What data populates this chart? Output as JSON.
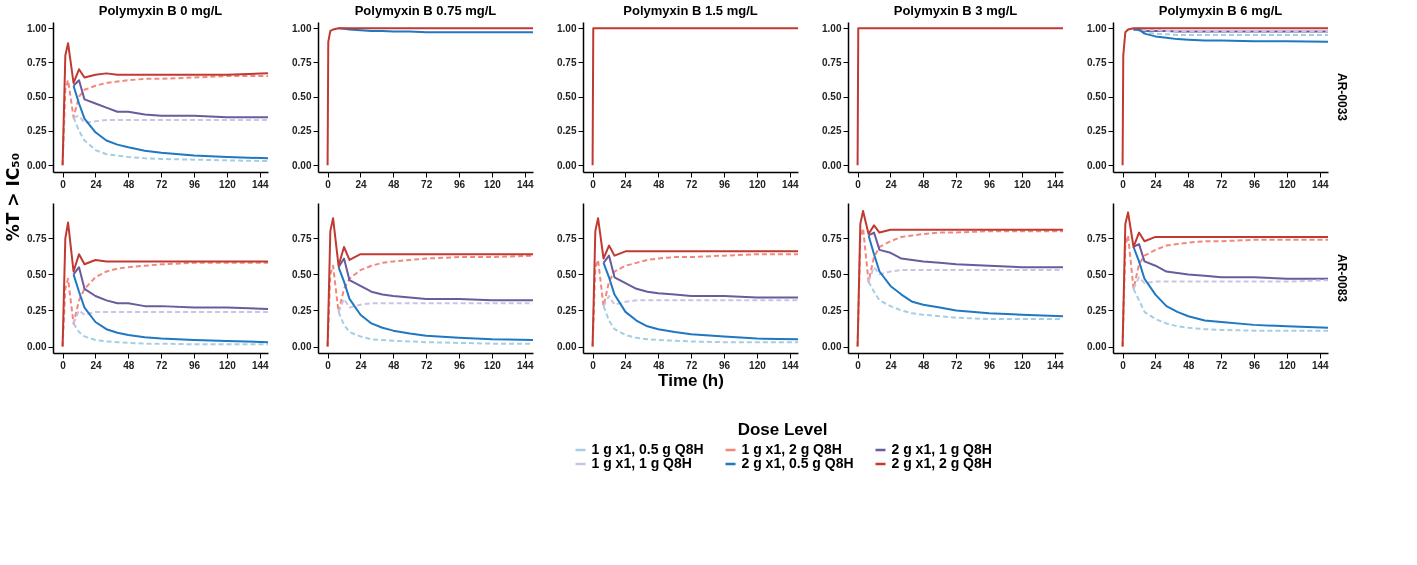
{
  "chart_data": [
    {
      "type": "line",
      "title": "Polymyxin B 0 mg/L",
      "ylabel": "%T > IC₅₀",
      "legend": "bottom",
      "legend_title": "Dose Level",
      "x": [
        0,
        2,
        4,
        8,
        12,
        16,
        24,
        32,
        40,
        48,
        60,
        72,
        96,
        120,
        150
      ],
      "xlim": [
        -7,
        150
      ],
      "xticks": [
        0,
        24,
        48,
        72,
        96,
        120,
        144
      ],
      "ylim": [
        -0.05,
        1.045
      ],
      "yticks": [
        {
          "value": 0,
          "label": "0.00"
        },
        {
          "value": 0.25,
          "label": "0.25"
        },
        {
          "value": 0.5,
          "label": "0.50"
        },
        {
          "value": 0.75,
          "label": "0.75"
        },
        {
          "value": 1,
          "label": "1.00"
        }
      ],
      "series": [
        {
          "name": "1 g x1, 0.5 g Q8H",
          "color": "#a6cee3",
          "line_style": "dashed",
          "values": [
            null,
            null,
            null,
            0.35,
            0.25,
            0.18,
            0.11,
            0.08,
            0.07,
            0.06,
            0.05,
            0.045,
            0.04,
            0.035,
            0.03
          ]
        },
        {
          "name": "1 g x1, 2 g Q8H",
          "color": "#f4877c",
          "line_style": "dashed",
          "values": [
            0,
            0.55,
            0.62,
            0.35,
            0.5,
            0.55,
            0.58,
            0.6,
            0.61,
            0.62,
            0.63,
            0.63,
            0.64,
            0.65,
            0.65
          ]
        },
        {
          "name": "2 g x1, 1 g Q8H",
          "color": "#6a5a9e",
          "line_style": "solid",
          "values": [
            null,
            null,
            null,
            0.58,
            0.62,
            0.48,
            0.45,
            0.42,
            0.39,
            0.39,
            0.37,
            0.36,
            0.36,
            0.35,
            0.35
          ]
        },
        {
          "name": "1 g x1, 1 g Q8H",
          "color": "#cbc3e3",
          "line_style": "dashed",
          "values": [
            null,
            null,
            null,
            0.35,
            0.36,
            0.31,
            0.32,
            0.33,
            0.33,
            0.33,
            0.33,
            0.33,
            0.33,
            0.33,
            0.33
          ]
        },
        {
          "name": "2 g x1, 0.5 g Q8H",
          "color": "#1f78c1",
          "line_style": "solid",
          "values": [
            null,
            null,
            null,
            0.58,
            0.45,
            0.34,
            0.24,
            0.18,
            0.15,
            0.13,
            0.105,
            0.09,
            0.07,
            0.06,
            0.05
          ]
        },
        {
          "name": "2 g x1, 2 g Q8H",
          "color": "#c13a32",
          "line_style": "solid",
          "values": [
            0,
            0.8,
            0.89,
            0.6,
            0.7,
            0.64,
            0.66,
            0.67,
            0.66,
            0.66,
            0.66,
            0.66,
            0.66,
            0.66,
            0.67
          ]
        }
      ]
    },
    {
      "type": "line",
      "title": "Polymyxin B 0.75 mg/L",
      "x": [
        0,
        0.5,
        2,
        4,
        8,
        12,
        16,
        24,
        32,
        40,
        48,
        60,
        72,
        96,
        120,
        150
      ],
      "xlim": [
        -7,
        150
      ],
      "xticks": [
        0,
        24,
        48,
        72,
        96,
        120,
        144
      ],
      "ylim": [
        -0.05,
        1.045
      ],
      "yticks": [
        {
          "value": 0,
          "label": "0.00"
        },
        {
          "value": 0.25,
          "label": "0.25"
        },
        {
          "value": 0.5,
          "label": "0.50"
        },
        {
          "value": 0.75,
          "label": "0.75"
        },
        {
          "value": 1,
          "label": "1.00"
        }
      ],
      "series": [
        {
          "name": "1 g x1, 0.5 g Q8H",
          "color": "#a6cee3",
          "line_style": "dashed",
          "values": [
            null,
            null,
            null,
            null,
            null,
            null,
            null,
            null,
            null,
            null,
            null,
            null,
            null,
            null,
            null,
            null
          ]
        },
        {
          "name": "1 g x1, 2 g Q8H",
          "color": "#f4877c",
          "line_style": "dashed",
          "values": [
            null,
            null,
            null,
            null,
            null,
            null,
            null,
            null,
            null,
            null,
            null,
            null,
            null,
            null,
            null,
            null
          ]
        },
        {
          "name": "2 g x1, 1 g Q8H",
          "color": "#6a5a9e",
          "line_style": "solid",
          "values": [
            null,
            null,
            null,
            null,
            null,
            null,
            null,
            null,
            null,
            null,
            null,
            null,
            null,
            null,
            null,
            null
          ]
        },
        {
          "name": "1 g x1, 1 g Q8H",
          "color": "#cbc3e3",
          "line_style": "dashed",
          "values": [
            null,
            null,
            null,
            null,
            null,
            null,
            null,
            null,
            null,
            null,
            null,
            null,
            null,
            null,
            null,
            null
          ]
        },
        {
          "name": "2 g x1, 0.5 g Q8H",
          "color": "#1f78c1",
          "line_style": "solid",
          "values": [
            null,
            null,
            null,
            null,
            1,
            0.995,
            0.99,
            0.985,
            0.98,
            0.98,
            0.975,
            0.975,
            0.97,
            0.97,
            0.97,
            0.97
          ]
        },
        {
          "name": "2 g x1, 2 g Q8H",
          "color": "#c13a32",
          "line_style": "solid",
          "values": [
            0,
            0.9,
            0.98,
            0.99,
            1,
            1,
            1,
            1,
            1,
            1,
            1,
            1,
            1,
            1,
            1,
            1
          ]
        }
      ]
    },
    {
      "type": "line",
      "title": "Polymyxin B 1.5 mg/L",
      "x": [
        0,
        0.5,
        2,
        4,
        8,
        12,
        16,
        24,
        32,
        40,
        48,
        60,
        72,
        96,
        120,
        150
      ],
      "xlim": [
        -7,
        150
      ],
      "xticks": [
        0,
        24,
        48,
        72,
        96,
        120,
        144
      ],
      "ylim": [
        -0.05,
        1.045
      ],
      "yticks": [
        {
          "value": 0,
          "label": "0.00"
        },
        {
          "value": 0.25,
          "label": "0.25"
        },
        {
          "value": 0.5,
          "label": "0.50"
        },
        {
          "value": 0.75,
          "label": "0.75"
        },
        {
          "value": 1,
          "label": "1.00"
        }
      ],
      "series": [
        {
          "name": "1 g x1, 0.5 g Q8H",
          "color": "#a6cee3",
          "line_style": "dashed",
          "values": [
            null,
            null,
            null,
            null,
            null,
            null,
            null,
            null,
            null,
            null,
            null,
            null,
            null,
            null,
            null,
            null
          ]
        },
        {
          "name": "1 g x1, 2 g Q8H",
          "color": "#f4877c",
          "line_style": "dashed",
          "values": [
            null,
            null,
            null,
            null,
            null,
            null,
            null,
            null,
            null,
            null,
            null,
            null,
            null,
            null,
            null,
            null
          ]
        },
        {
          "name": "2 g x1, 1 g Q8H",
          "color": "#6a5a9e",
          "line_style": "solid",
          "values": [
            null,
            null,
            null,
            null,
            null,
            null,
            null,
            null,
            null,
            null,
            null,
            null,
            null,
            null,
            null,
            null
          ]
        },
        {
          "name": "1 g x1, 1 g Q8H",
          "color": "#cbc3e3",
          "line_style": "dashed",
          "values": [
            null,
            null,
            null,
            null,
            null,
            null,
            null,
            null,
            null,
            null,
            null,
            null,
            null,
            null,
            null,
            null
          ]
        },
        {
          "name": "2 g x1, 0.5 g Q8H",
          "color": "#1f78c1",
          "line_style": "solid",
          "values": [
            null,
            null,
            null,
            null,
            null,
            null,
            null,
            null,
            null,
            null,
            null,
            null,
            null,
            null,
            null,
            null
          ]
        },
        {
          "name": "2 g x1, 2 g Q8H",
          "color": "#c13a32",
          "line_style": "solid",
          "values": [
            0,
            1,
            1,
            1,
            1,
            1,
            1,
            1,
            1,
            1,
            1,
            1,
            1,
            1,
            1,
            1
          ]
        }
      ]
    },
    {
      "type": "line",
      "title": "Polymyxin B 3 mg/L",
      "x": [
        0,
        0.5,
        2,
        4,
        8,
        12,
        16,
        24,
        32,
        40,
        48,
        60,
        72,
        96,
        120,
        150
      ],
      "xlim": [
        -7,
        150
      ],
      "xticks": [
        0,
        24,
        48,
        72,
        96,
        120,
        144
      ],
      "ylim": [
        -0.05,
        1.045
      ],
      "yticks": [
        {
          "value": 0,
          "label": "0.00"
        },
        {
          "value": 0.25,
          "label": "0.25"
        },
        {
          "value": 0.5,
          "label": "0.50"
        },
        {
          "value": 0.75,
          "label": "0.75"
        },
        {
          "value": 1,
          "label": "1.00"
        }
      ],
      "series": [
        {
          "name": "1 g x1, 0.5 g Q8H",
          "color": "#a6cee3",
          "line_style": "dashed",
          "values": [
            null,
            null,
            null,
            null,
            null,
            null,
            null,
            null,
            null,
            null,
            null,
            null,
            null,
            null,
            null,
            null
          ]
        },
        {
          "name": "1 g x1, 2 g Q8H",
          "color": "#f4877c",
          "line_style": "dashed",
          "values": [
            null,
            null,
            null,
            null,
            null,
            null,
            null,
            null,
            null,
            null,
            null,
            null,
            null,
            null,
            null,
            null
          ]
        },
        {
          "name": "2 g x1, 1 g Q8H",
          "color": "#6a5a9e",
          "line_style": "solid",
          "values": [
            null,
            null,
            null,
            null,
            null,
            null,
            null,
            null,
            null,
            null,
            null,
            null,
            null,
            null,
            null,
            null
          ]
        },
        {
          "name": "1 g x1, 1 g Q8H",
          "color": "#cbc3e3",
          "line_style": "dashed",
          "values": [
            null,
            null,
            null,
            null,
            null,
            null,
            null,
            null,
            null,
            null,
            null,
            null,
            null,
            null,
            null,
            null
          ]
        },
        {
          "name": "2 g x1, 0.5 g Q8H",
          "color": "#1f78c1",
          "line_style": "solid",
          "values": [
            null,
            null,
            null,
            null,
            null,
            null,
            null,
            null,
            null,
            null,
            null,
            null,
            null,
            null,
            null,
            null
          ]
        },
        {
          "name": "2 g x1, 2 g Q8H",
          "color": "#c13a32",
          "line_style": "solid",
          "values": [
            0,
            1,
            1,
            1,
            1,
            1,
            1,
            1,
            1,
            1,
            1,
            1,
            1,
            1,
            1,
            1
          ]
        }
      ]
    },
    {
      "type": "line",
      "title": "Polymyxin B 6 mg/L",
      "annotations": [
        "AR-0033"
      ],
      "x": [
        0,
        0.5,
        2,
        4,
        8,
        12,
        16,
        24,
        32,
        40,
        48,
        60,
        72,
        96,
        120,
        150
      ],
      "xlim": [
        -7,
        150
      ],
      "xticks": [
        0,
        24,
        48,
        72,
        96,
        120,
        144
      ],
      "ylim": [
        -0.05,
        1.045
      ],
      "yticks": [
        {
          "value": 0,
          "label": "0.00"
        },
        {
          "value": 0.25,
          "label": "0.25"
        },
        {
          "value": 0.5,
          "label": "0.50"
        },
        {
          "value": 0.75,
          "label": "0.75"
        },
        {
          "value": 1,
          "label": "1.00"
        }
      ],
      "series": [
        {
          "name": "1 g x1, 0.5 g Q8H",
          "color": "#a6cee3",
          "line_style": "dashed",
          "values": [
            null,
            null,
            null,
            null,
            0.99,
            0.985,
            0.97,
            0.96,
            0.955,
            0.95,
            0.95,
            0.95,
            0.95,
            0.95,
            0.95,
            0.95
          ]
        },
        {
          "name": "1 g x1, 2 g Q8H",
          "color": "#f4877c",
          "line_style": "dashed",
          "values": [
            null,
            null,
            null,
            null,
            null,
            null,
            null,
            null,
            null,
            null,
            null,
            null,
            null,
            null,
            null,
            null
          ]
        },
        {
          "name": "2 g x1, 1 g Q8H",
          "color": "#6a5a9e",
          "line_style": "solid",
          "values": [
            null,
            null,
            null,
            null,
            0.99,
            0.985,
            0.98,
            0.98,
            0.98,
            0.975,
            0.975,
            0.975,
            0.975,
            0.975,
            0.975,
            0.975
          ]
        },
        {
          "name": "1 g x1, 1 g Q8H",
          "color": "#cbc3e3",
          "line_style": "dashed",
          "values": [
            null,
            null,
            null,
            null,
            0.99,
            0.99,
            0.985,
            0.985,
            0.98,
            0.98,
            0.98,
            0.98,
            0.98,
            0.98,
            0.98,
            0.98
          ]
        },
        {
          "name": "2 g x1, 0.5 g Q8H",
          "color": "#1f78c1",
          "line_style": "solid",
          "values": [
            null,
            null,
            null,
            null,
            0.99,
            0.99,
            0.96,
            0.94,
            0.93,
            0.92,
            0.915,
            0.91,
            0.91,
            0.905,
            0.905,
            0.9
          ]
        },
        {
          "name": "2 g x1, 2 g Q8H",
          "color": "#c13a32",
          "line_style": "solid",
          "values": [
            0,
            0.8,
            0.97,
            0.99,
            1,
            1,
            1,
            1,
            1,
            1,
            1,
            1,
            1,
            1,
            1,
            1
          ]
        }
      ]
    },
    {
      "type": "line",
      "x": [
        0,
        2,
        4,
        8,
        12,
        16,
        24,
        32,
        40,
        48,
        60,
        72,
        96,
        120,
        150
      ],
      "xlim": [
        -7,
        150
      ],
      "xticks": [
        0,
        24,
        48,
        72,
        96,
        120,
        144
      ],
      "ylim": [
        -0.045,
        0.995
      ],
      "yticks": [
        {
          "value": 0,
          "label": "0.00"
        },
        {
          "value": 0.25,
          "label": "0.25"
        },
        {
          "value": 0.5,
          "label": "0.50"
        },
        {
          "value": 0.75,
          "label": "0.75"
        }
      ],
      "series": [
        {
          "name": "1 g x1, 0.5 g Q8H",
          "color": "#a6cee3",
          "line_style": "dashed",
          "values": [
            null,
            null,
            null,
            0.16,
            0.1,
            0.07,
            0.045,
            0.035,
            0.03,
            0.025,
            0.02,
            0.02,
            0.015,
            0.015,
            0.015
          ]
        },
        {
          "name": "1 g x1, 2 g Q8H",
          "color": "#f4877c",
          "line_style": "dashed",
          "values": [
            0,
            0.4,
            0.47,
            0.16,
            0.32,
            0.4,
            0.48,
            0.52,
            0.54,
            0.55,
            0.56,
            0.57,
            0.58,
            0.58,
            0.58
          ]
        },
        {
          "name": "2 g x1, 1 g Q8H",
          "color": "#6a5a9e",
          "line_style": "solid",
          "values": [
            null,
            null,
            null,
            0.5,
            0.55,
            0.4,
            0.35,
            0.32,
            0.3,
            0.3,
            0.28,
            0.28,
            0.27,
            0.27,
            0.26
          ]
        },
        {
          "name": "1 g x1, 1 g Q8H",
          "color": "#cbc3e3",
          "line_style": "dashed",
          "values": [
            null,
            null,
            null,
            0.16,
            0.25,
            0.22,
            0.24,
            0.24,
            0.24,
            0.24,
            0.24,
            0.24,
            0.24,
            0.24,
            0.24
          ]
        },
        {
          "name": "2 g x1, 0.5 g Q8H",
          "color": "#1f78c1",
          "line_style": "solid",
          "values": [
            null,
            null,
            null,
            0.5,
            0.38,
            0.27,
            0.17,
            0.12,
            0.095,
            0.08,
            0.065,
            0.055,
            0.045,
            0.038,
            0.03
          ]
        },
        {
          "name": "2 g x1, 2 g Q8H",
          "color": "#c13a32",
          "line_style": "solid",
          "values": [
            0,
            0.75,
            0.86,
            0.52,
            0.64,
            0.57,
            0.6,
            0.59,
            0.59,
            0.59,
            0.59,
            0.59,
            0.59,
            0.59,
            0.59
          ]
        }
      ]
    },
    {
      "type": "line",
      "x": [
        0,
        2,
        4,
        8,
        12,
        16,
        24,
        32,
        40,
        48,
        60,
        72,
        96,
        120,
        150
      ],
      "xlim": [
        -7,
        150
      ],
      "xticks": [
        0,
        24,
        48,
        72,
        96,
        120,
        144
      ],
      "ylim": [
        -0.045,
        0.995
      ],
      "yticks": [
        {
          "value": 0,
          "label": "0.00"
        },
        {
          "value": 0.25,
          "label": "0.25"
        },
        {
          "value": 0.5,
          "label": "0.50"
        },
        {
          "value": 0.75,
          "label": "0.75"
        }
      ],
      "series": [
        {
          "name": "1 g x1, 0.5 g Q8H",
          "color": "#a6cee3",
          "line_style": "dashed",
          "values": [
            null,
            null,
            null,
            0.24,
            0.15,
            0.1,
            0.07,
            0.05,
            0.045,
            0.04,
            0.035,
            0.03,
            0.025,
            0.02,
            0.02
          ]
        },
        {
          "name": "1 g x1, 2 g Q8H",
          "color": "#f4877c",
          "line_style": "dashed",
          "values": [
            0,
            0.5,
            0.56,
            0.24,
            0.4,
            0.47,
            0.53,
            0.56,
            0.58,
            0.59,
            0.6,
            0.61,
            0.62,
            0.62,
            0.63
          ]
        },
        {
          "name": "2 g x1, 1 g Q8H",
          "color": "#6a5a9e",
          "line_style": "solid",
          "values": [
            null,
            null,
            null,
            0.55,
            0.61,
            0.46,
            0.42,
            0.38,
            0.36,
            0.35,
            0.34,
            0.33,
            0.33,
            0.32,
            0.32
          ]
        },
        {
          "name": "1 g x1, 1 g Q8H",
          "color": "#cbc3e3",
          "line_style": "dashed",
          "values": [
            null,
            null,
            null,
            0.24,
            0.33,
            0.27,
            0.29,
            0.3,
            0.3,
            0.3,
            0.3,
            0.3,
            0.3,
            0.3,
            0.3
          ]
        },
        {
          "name": "2 g x1, 0.5 g Q8H",
          "color": "#1f78c1",
          "line_style": "solid",
          "values": [
            null,
            null,
            null,
            0.55,
            0.45,
            0.33,
            0.22,
            0.16,
            0.13,
            0.11,
            0.09,
            0.075,
            0.06,
            0.05,
            0.045
          ]
        },
        {
          "name": "2 g x1, 2 g Q8H",
          "color": "#c13a32",
          "line_style": "solid",
          "values": [
            0,
            0.8,
            0.89,
            0.56,
            0.69,
            0.6,
            0.64,
            0.64,
            0.64,
            0.64,
            0.64,
            0.64,
            0.64,
            0.64,
            0.64
          ]
        }
      ]
    },
    {
      "type": "line",
      "xlabel": "Time (h)",
      "x": [
        0,
        2,
        4,
        8,
        12,
        16,
        24,
        32,
        40,
        48,
        60,
        72,
        96,
        120,
        150
      ],
      "xlim": [
        -7,
        150
      ],
      "xticks": [
        0,
        24,
        48,
        72,
        96,
        120,
        144
      ],
      "ylim": [
        -0.045,
        0.995
      ],
      "yticks": [
        {
          "value": 0,
          "label": "0.00"
        },
        {
          "value": 0.25,
          "label": "0.25"
        },
        {
          "value": 0.5,
          "label": "0.50"
        },
        {
          "value": 0.75,
          "label": "0.75"
        }
      ],
      "series": [
        {
          "name": "1 g x1, 0.5 g Q8H",
          "color": "#a6cee3",
          "line_style": "dashed",
          "values": [
            null,
            null,
            null,
            0.28,
            0.18,
            0.12,
            0.08,
            0.06,
            0.05,
            0.045,
            0.04,
            0.035,
            0.03,
            0.03,
            0.03
          ]
        },
        {
          "name": "1 g x1, 2 g Q8H",
          "color": "#f4877c",
          "line_style": "dashed",
          "values": [
            0,
            0.55,
            0.6,
            0.28,
            0.45,
            0.52,
            0.56,
            0.58,
            0.6,
            0.61,
            0.62,
            0.62,
            0.63,
            0.64,
            0.64
          ]
        },
        {
          "name": "2 g x1, 1 g Q8H",
          "color": "#6a5a9e",
          "line_style": "solid",
          "values": [
            null,
            null,
            null,
            0.58,
            0.63,
            0.48,
            0.44,
            0.4,
            0.38,
            0.37,
            0.36,
            0.35,
            0.35,
            0.34,
            0.34
          ]
        },
        {
          "name": "1 g x1, 1 g Q8H",
          "color": "#cbc3e3",
          "line_style": "dashed",
          "values": [
            null,
            null,
            null,
            0.28,
            0.35,
            0.29,
            0.31,
            0.32,
            0.32,
            0.32,
            0.32,
            0.32,
            0.32,
            0.32,
            0.32
          ]
        },
        {
          "name": "2 g x1, 0.5 g Q8H",
          "color": "#1f78c1",
          "line_style": "solid",
          "values": [
            null,
            null,
            null,
            0.58,
            0.48,
            0.36,
            0.24,
            0.18,
            0.14,
            0.12,
            0.1,
            0.085,
            0.07,
            0.055,
            0.05
          ]
        },
        {
          "name": "2 g x1, 2 g Q8H",
          "color": "#c13a32",
          "line_style": "solid",
          "values": [
            0,
            0.8,
            0.89,
            0.61,
            0.7,
            0.63,
            0.66,
            0.66,
            0.66,
            0.66,
            0.66,
            0.66,
            0.66,
            0.66,
            0.66
          ]
        }
      ]
    },
    {
      "type": "line",
      "x": [
        0,
        2,
        4,
        8,
        12,
        16,
        24,
        32,
        40,
        48,
        60,
        72,
        96,
        120,
        150
      ],
      "xlim": [
        -7,
        150
      ],
      "xticks": [
        0,
        24,
        48,
        72,
        96,
        120,
        144
      ],
      "ylim": [
        -0.045,
        0.995
      ],
      "yticks": [
        {
          "value": 0,
          "label": "0.00"
        },
        {
          "value": 0.25,
          "label": "0.25"
        },
        {
          "value": 0.5,
          "label": "0.50"
        },
        {
          "value": 0.75,
          "label": "0.75"
        }
      ],
      "series": [
        {
          "name": "1 g x1, 0.5 g Q8H",
          "color": "#a6cee3",
          "line_style": "dashed",
          "values": [
            null,
            null,
            null,
            0.45,
            0.38,
            0.32,
            0.28,
            0.25,
            0.23,
            0.22,
            0.21,
            0.2,
            0.19,
            0.19,
            0.19
          ]
        },
        {
          "name": "1 g x1, 2 g Q8H",
          "color": "#f4877c",
          "line_style": "dashed",
          "values": [
            0,
            0.75,
            0.82,
            0.45,
            0.62,
            0.69,
            0.73,
            0.76,
            0.77,
            0.78,
            0.79,
            0.79,
            0.8,
            0.8,
            0.8
          ]
        },
        {
          "name": "2 g x1, 1 g Q8H",
          "color": "#6a5a9e",
          "line_style": "solid",
          "values": [
            null,
            null,
            null,
            0.77,
            0.79,
            0.67,
            0.65,
            0.61,
            0.6,
            0.59,
            0.58,
            0.57,
            0.56,
            0.55,
            0.55
          ]
        },
        {
          "name": "1 g x1, 1 g Q8H",
          "color": "#cbc3e3",
          "line_style": "dashed",
          "values": [
            null,
            null,
            null,
            0.45,
            0.55,
            0.5,
            0.52,
            0.53,
            0.53,
            0.53,
            0.53,
            0.53,
            0.53,
            0.53,
            0.53
          ]
        },
        {
          "name": "2 g x1, 0.5 g Q8H",
          "color": "#1f78c1",
          "line_style": "solid",
          "values": [
            null,
            null,
            null,
            0.77,
            0.64,
            0.52,
            0.42,
            0.36,
            0.31,
            0.29,
            0.27,
            0.25,
            0.23,
            0.22,
            0.21
          ]
        },
        {
          "name": "2 g x1, 2 g Q8H",
          "color": "#c13a32",
          "line_style": "solid",
          "values": [
            0,
            0.85,
            0.94,
            0.78,
            0.84,
            0.79,
            0.81,
            0.81,
            0.81,
            0.81,
            0.81,
            0.81,
            0.81,
            0.81,
            0.81
          ]
        }
      ]
    },
    {
      "type": "line",
      "annotations": [
        "AR-0083"
      ],
      "x": [
        0,
        2,
        4,
        8,
        12,
        16,
        24,
        32,
        40,
        48,
        60,
        72,
        96,
        120,
        150
      ],
      "xlim": [
        -7,
        150
      ],
      "xticks": [
        0,
        24,
        48,
        72,
        96,
        120,
        144
      ],
      "ylim": [
        -0.045,
        0.995
      ],
      "yticks": [
        {
          "value": 0,
          "label": "0.00"
        },
        {
          "value": 0.25,
          "label": "0.25"
        },
        {
          "value": 0.5,
          "label": "0.50"
        },
        {
          "value": 0.75,
          "label": "0.75"
        }
      ],
      "series": [
        {
          "name": "1 g x1, 0.5 g Q8H",
          "color": "#a6cee3",
          "line_style": "dashed",
          "values": [
            null,
            null,
            null,
            0.4,
            0.32,
            0.24,
            0.19,
            0.16,
            0.14,
            0.13,
            0.12,
            0.115,
            0.11,
            0.11,
            0.11
          ]
        },
        {
          "name": "1 g x1, 2 g Q8H",
          "color": "#f4877c",
          "line_style": "dashed",
          "values": [
            0,
            0.7,
            0.77,
            0.4,
            0.57,
            0.63,
            0.67,
            0.7,
            0.71,
            0.72,
            0.73,
            0.73,
            0.74,
            0.74,
            0.74
          ]
        },
        {
          "name": "2 g x1, 1 g Q8H",
          "color": "#6a5a9e",
          "line_style": "solid",
          "values": [
            null,
            null,
            null,
            0.69,
            0.71,
            0.59,
            0.56,
            0.52,
            0.51,
            0.5,
            0.49,
            0.48,
            0.48,
            0.47,
            0.47
          ]
        },
        {
          "name": "1 g x1, 1 g Q8H",
          "color": "#cbc3e3",
          "line_style": "dashed",
          "values": [
            null,
            null,
            null,
            0.4,
            0.48,
            0.44,
            0.45,
            0.45,
            0.45,
            0.45,
            0.45,
            0.45,
            0.45,
            0.45,
            0.46
          ]
        },
        {
          "name": "2 g x1, 0.5 g Q8H",
          "color": "#1f78c1",
          "line_style": "solid",
          "values": [
            null,
            null,
            null,
            0.69,
            0.59,
            0.47,
            0.36,
            0.28,
            0.24,
            0.21,
            0.18,
            0.17,
            0.15,
            0.14,
            0.13
          ]
        },
        {
          "name": "2 g x1, 2 g Q8H",
          "color": "#c13a32",
          "line_style": "solid",
          "values": [
            0,
            0.85,
            0.93,
            0.69,
            0.79,
            0.73,
            0.76,
            0.76,
            0.76,
            0.76,
            0.76,
            0.76,
            0.76,
            0.76,
            0.76
          ]
        }
      ]
    }
  ]
}
